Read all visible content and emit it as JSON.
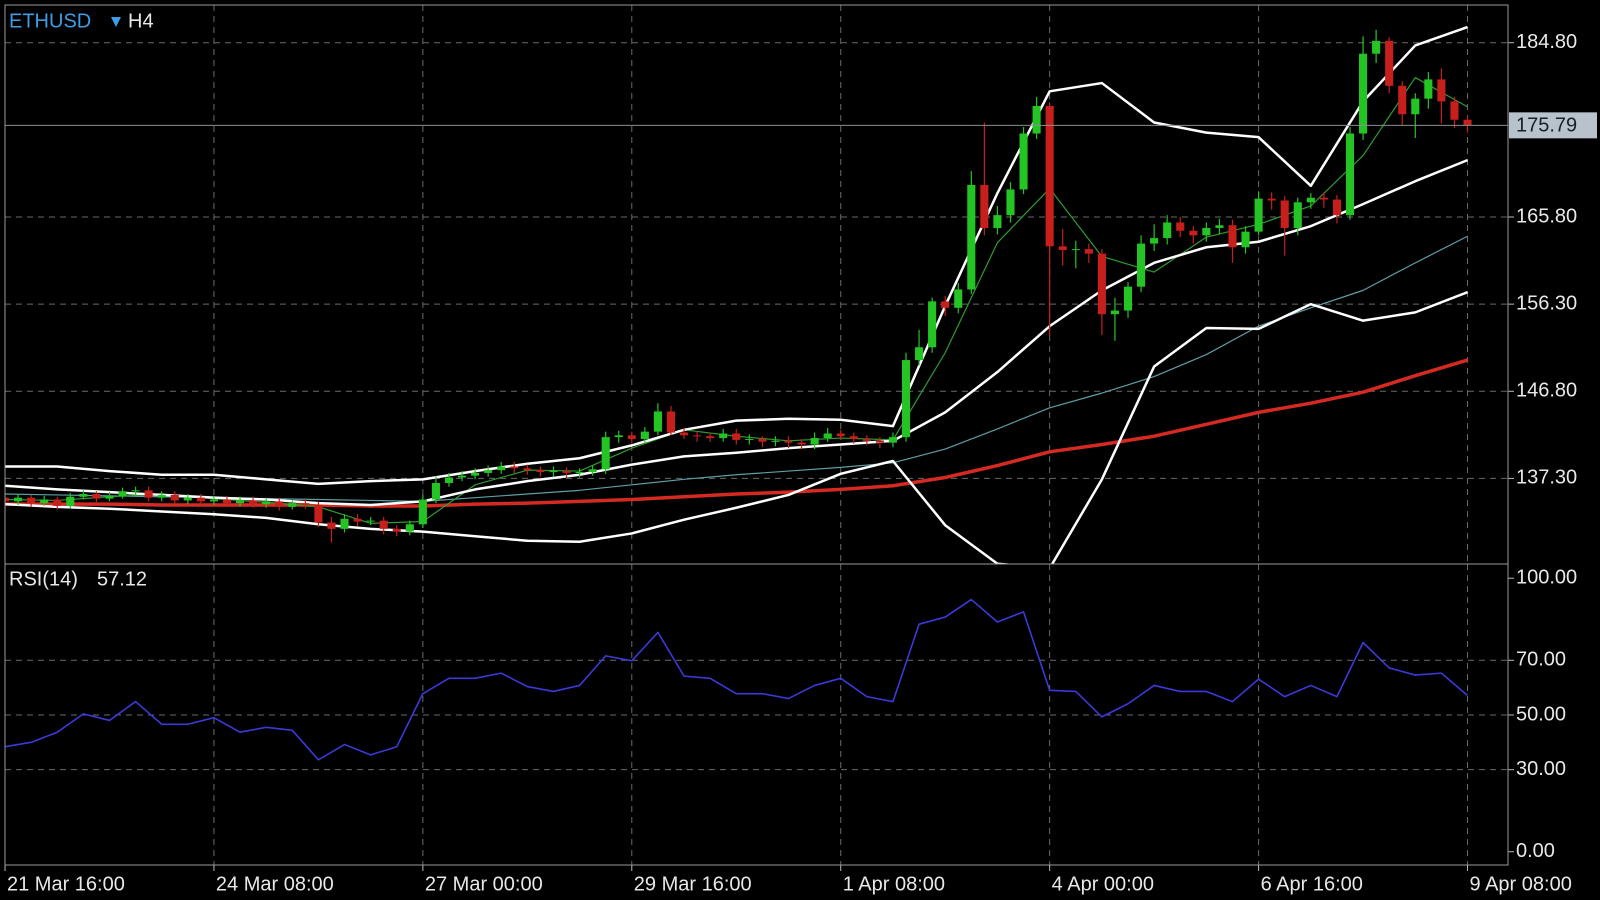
{
  "chart_data": [
    {
      "type": "candlestick",
      "symbol": "ETHUSD",
      "timeframe": "H4",
      "up_color": "#25c425",
      "down_color": "#c61f1c",
      "open": [
        135.2,
        134.8,
        135.2,
        134.6,
        135.0,
        134.3,
        135.3,
        135.6,
        135.1,
        135.4,
        135.9,
        136.0,
        135.2,
        135.5,
        134.9,
        135.2,
        134.8,
        135.0,
        134.6,
        134.9,
        134.5,
        134.8,
        134.2,
        134.6,
        134.4,
        132.5,
        131.8,
        132.9,
        132.6,
        132.7,
        131.8,
        131.5,
        132.3,
        135.0,
        136.8,
        137.4,
        137.6,
        137.9,
        138.2,
        138.6,
        138.4,
        138.2,
        138.0,
        138.1,
        137.9,
        138.0,
        138.3,
        141.8,
        142.0,
        141.6,
        142.4,
        144.6,
        142.3,
        142.0,
        141.9,
        141.7,
        142.2,
        141.5,
        141.6,
        141.3,
        141.4,
        141.2,
        141.0,
        141.7,
        142.2,
        141.9,
        141.6,
        141.4,
        141.2,
        141.8,
        150.2,
        151.6,
        156.6,
        155.9,
        157.9,
        169.3,
        164.6,
        166.0,
        168.8,
        174.9,
        177.9,
        162.6,
        162.2,
        162.3,
        161.8,
        155.2,
        155.6,
        158.2,
        162.9,
        163.5,
        165.2,
        164.3,
        163.8,
        164.6,
        164.9,
        162.5,
        164.2,
        167.8,
        167.6,
        164.6,
        167.4,
        167.9,
        167.7,
        166.0,
        174.9,
        183.6,
        185.0,
        180.1,
        177.0,
        178.7,
        180.8,
        178.4,
        176.4
      ],
      "high": [
        135.6,
        135.6,
        135.5,
        135.4,
        135.3,
        135.7,
        136.0,
        135.9,
        135.8,
        136.3,
        136.4,
        136.4,
        135.9,
        135.9,
        135.6,
        135.6,
        135.4,
        135.4,
        135.3,
        135.3,
        135.2,
        135.2,
        134.9,
        135.0,
        134.8,
        133.1,
        133.4,
        133.4,
        133.1,
        133.1,
        132.2,
        132.7,
        135.5,
        137.5,
        137.9,
        138.1,
        138.4,
        138.7,
        139.1,
        139.1,
        138.8,
        138.6,
        138.6,
        138.5,
        138.4,
        138.7,
        142.4,
        142.5,
        142.4,
        142.9,
        145.5,
        145.2,
        142.8,
        142.4,
        142.3,
        142.7,
        142.7,
        142.1,
        141.9,
        141.9,
        141.9,
        141.6,
        142.3,
        142.8,
        142.6,
        142.3,
        142.0,
        141.8,
        142.3,
        151.0,
        153.5,
        157.0,
        157.2,
        158.6,
        170.8,
        176.1,
        167.0,
        169.6,
        175.6,
        178.9,
        178.3,
        164.5,
        163.2,
        162.9,
        162.3,
        157.0,
        158.7,
        163.8,
        165.0,
        166.0,
        165.8,
        164.8,
        165.2,
        165.6,
        165.5,
        164.8,
        168.6,
        168.5,
        168.1,
        167.9,
        168.4,
        168.5,
        168.2,
        175.6,
        185.5,
        186.2,
        185.4,
        180.6,
        179.3,
        181.6,
        182.0,
        178.9,
        176.9
      ],
      "low": [
        133.8,
        134.4,
        134.2,
        134.3,
        133.9,
        134.0,
        135.0,
        134.7,
        134.8,
        135.1,
        135.4,
        134.8,
        134.8,
        134.5,
        134.5,
        134.4,
        134.4,
        134.2,
        134.2,
        134.1,
        134.1,
        133.8,
        133.9,
        134.0,
        132.0,
        130.3,
        131.4,
        132.1,
        132.2,
        131.2,
        131.0,
        131.1,
        131.9,
        134.6,
        136.4,
        137.0,
        137.2,
        137.5,
        137.8,
        137.9,
        137.7,
        137.5,
        137.5,
        137.4,
        137.4,
        137.6,
        137.8,
        141.2,
        141.1,
        141.2,
        142.0,
        142.0,
        141.6,
        141.3,
        141.3,
        141.3,
        141.0,
        141.0,
        140.7,
        140.8,
        140.6,
        140.5,
        140.5,
        141.3,
        141.5,
        141.1,
        140.9,
        140.6,
        140.7,
        141.3,
        149.6,
        151.0,
        155.0,
        155.3,
        157.4,
        163.8,
        163.9,
        165.2,
        168.3,
        174.3,
        152.8,
        160.5,
        160.2,
        160.8,
        152.9,
        152.3,
        154.8,
        157.6,
        162.1,
        162.8,
        163.6,
        162.9,
        163.1,
        163.9,
        160.8,
        161.8,
        163.8,
        166.6,
        161.6,
        163.8,
        166.7,
        166.8,
        165.1,
        165.5,
        174.2,
        182.6,
        179.3,
        175.8,
        174.4,
        177.6,
        176.0,
        175.5,
        175.0
      ],
      "close": [
        134.8,
        135.2,
        134.6,
        135.0,
        134.3,
        135.3,
        135.6,
        135.1,
        135.4,
        135.9,
        136.0,
        135.2,
        135.5,
        134.9,
        135.2,
        134.8,
        135.0,
        134.6,
        134.9,
        134.5,
        134.8,
        134.2,
        134.6,
        134.4,
        132.5,
        131.8,
        132.9,
        132.6,
        132.7,
        131.8,
        131.5,
        132.3,
        135.0,
        136.8,
        137.4,
        137.6,
        137.9,
        138.2,
        138.6,
        138.4,
        138.2,
        138.0,
        138.1,
        137.9,
        138.0,
        138.3,
        141.8,
        142.0,
        141.6,
        142.4,
        144.6,
        142.3,
        142.0,
        141.9,
        141.7,
        142.2,
        141.5,
        141.6,
        141.3,
        141.4,
        141.2,
        141.0,
        141.7,
        142.2,
        141.9,
        141.6,
        141.4,
        141.2,
        141.8,
        150.2,
        151.6,
        156.6,
        155.9,
        157.9,
        169.3,
        164.6,
        166.0,
        168.8,
        174.9,
        177.9,
        162.6,
        162.2,
        162.3,
        161.8,
        155.2,
        155.6,
        158.2,
        162.9,
        163.5,
        165.2,
        164.3,
        163.8,
        164.6,
        164.9,
        162.5,
        164.2,
        167.8,
        167.6,
        164.6,
        167.4,
        167.9,
        167.7,
        166.0,
        174.9,
        183.6,
        185.0,
        180.1,
        177.0,
        178.7,
        180.8,
        178.4,
        176.4,
        175.79
      ],
      "overlay_x": [
        0,
        4,
        8,
        12,
        16,
        20,
        24,
        28,
        32,
        36,
        40,
        44,
        48,
        52,
        56,
        60,
        64,
        68,
        72,
        76,
        80,
        84,
        88,
        92,
        96,
        100,
        104,
        108,
        112
      ],
      "overlays": [
        {
          "color": "#d42a22",
          "width": 3.5,
          "values": [
            134.5,
            134.5,
            134.5,
            134.4,
            134.4,
            134.4,
            134.4,
            134.3,
            134.3,
            134.5,
            134.6,
            134.8,
            135.0,
            135.3,
            135.6,
            135.8,
            136.1,
            136.5,
            137.4,
            138.7,
            140.2,
            141.0,
            141.9,
            143.2,
            144.5,
            145.5,
            146.7,
            148.5,
            150.2
          ]
        },
        {
          "color": "#5e9ea6",
          "width": 1.2,
          "values": [
            135.6,
            135.5,
            135.4,
            135.3,
            135.2,
            135.1,
            135.0,
            134.9,
            134.8,
            135.2,
            135.6,
            136.0,
            136.6,
            137.2,
            137.7,
            138.1,
            138.5,
            139.0,
            140.5,
            142.7,
            145.0,
            146.6,
            148.4,
            150.8,
            153.9,
            155.9,
            157.8,
            160.8,
            163.7
          ]
        },
        {
          "color": "#2e9c2e",
          "width": 1.2,
          "values": [
            135.0,
            134.9,
            135.3,
            135.6,
            135.1,
            134.7,
            134.2,
            132.4,
            132.6,
            136.6,
            138.2,
            138.1,
            140.6,
            142.6,
            141.9,
            141.4,
            141.7,
            141.5,
            151.0,
            163.0,
            168.9,
            161.5,
            159.8,
            163.6,
            165.0,
            167.0,
            172.5,
            181.0,
            177.8
          ]
        },
        {
          "color": "#ffffff",
          "width": 2.5,
          "values": [
            138.6,
            138.6,
            138.1,
            137.7,
            137.7,
            137.2,
            136.7,
            137.0,
            137.2,
            138.1,
            138.9,
            139.5,
            140.9,
            142.6,
            143.6,
            143.8,
            143.7,
            143.0,
            156.1,
            168.4,
            179.5,
            180.4,
            176.1,
            175.0,
            174.5,
            169.2,
            178.4,
            184.5,
            186.5
          ]
        },
        {
          "color": "#ffffff",
          "width": 2.5,
          "values": [
            136.5,
            136.1,
            135.8,
            135.5,
            135.2,
            135.0,
            134.6,
            134.4,
            134.8,
            136.1,
            137.0,
            137.7,
            138.8,
            139.7,
            140.1,
            140.6,
            141.0,
            141.4,
            144.5,
            148.9,
            153.9,
            157.8,
            160.8,
            162.5,
            163.1,
            164.8,
            167.2,
            169.7,
            172.0
          ]
        },
        {
          "color": "#ffffff",
          "width": 2.5,
          "values": [
            134.5,
            134.2,
            134.0,
            133.7,
            133.4,
            133.0,
            132.3,
            131.8,
            131.5,
            131.0,
            130.5,
            130.4,
            131.3,
            132.8,
            134.1,
            135.5,
            137.8,
            139.2,
            132.2,
            128.0,
            127.5,
            137.2,
            149.5,
            153.7,
            153.6,
            156.3,
            154.5,
            155.4,
            157.6
          ]
        }
      ],
      "xlim": [
        0,
        115.1
      ],
      "xticks": [
        {
          "value": 0,
          "label": "21 Mar 16:00"
        },
        {
          "value": 16,
          "label": "24 Mar 08:00"
        },
        {
          "value": 32,
          "label": "27 Mar 00:00"
        },
        {
          "value": 48,
          "label": "29 Mar 16:00"
        },
        {
          "value": 64,
          "label": "1 Apr 08:00"
        },
        {
          "value": 80,
          "label": "4 Apr 00:00"
        },
        {
          "value": 96,
          "label": "6 Apr 16:00"
        },
        {
          "value": 112,
          "label": "9 Apr 08:00"
        }
      ],
      "ylim": [
        127.97,
        188.91
      ],
      "yticks": [
        {
          "value": 184.8,
          "label": "184.80"
        },
        {
          "value": 165.8,
          "label": "165.80"
        },
        {
          "value": 156.3,
          "label": "156.30"
        },
        {
          "value": 146.8,
          "label": "146.80"
        },
        {
          "value": 137.3,
          "label": "137.30"
        }
      ],
      "grid": true
    },
    {
      "type": "line",
      "name": "RSI(14)",
      "color": "#3a3ad8",
      "x": [
        0,
        2,
        4,
        6,
        8,
        10,
        12,
        14,
        16,
        18,
        20,
        22,
        24,
        26,
        28,
        30,
        32,
        34,
        36,
        38,
        40,
        42,
        44,
        46,
        48,
        50,
        52,
        54,
        56,
        58,
        60,
        62,
        64,
        66,
        68,
        70,
        72,
        74,
        76,
        78,
        80,
        82,
        84,
        86,
        88,
        90,
        92,
        94,
        96,
        98,
        100,
        102,
        104,
        106,
        108,
        110,
        112
      ],
      "values": [
        38.4,
        40.0,
        43.7,
        50.4,
        48.0,
        54.9,
        46.6,
        46.6,
        49.0,
        43.7,
        45.5,
        44.4,
        33.6,
        39.2,
        35.4,
        38.4,
        57.8,
        63.4,
        63.4,
        65.3,
        60.4,
        58.6,
        60.8,
        71.6,
        69.8,
        80.2,
        64.2,
        63.4,
        57.8,
        57.8,
        56.0,
        60.8,
        63.4,
        56.7,
        54.9,
        83.2,
        85.8,
        92.2,
        84.0,
        87.7,
        59.0,
        58.6,
        49.3,
        54.1,
        60.8,
        58.6,
        58.6,
        54.9,
        63.1,
        56.7,
        60.8,
        56.7,
        76.5,
        67.2,
        64.6,
        65.3,
        57.12
      ],
      "ylim": [
        -4.85,
        105.2
      ],
      "yticks": [
        {
          "value": 100,
          "label": "100.00"
        },
        {
          "value": 70,
          "label": "70.00"
        },
        {
          "value": 50,
          "label": "50.00"
        },
        {
          "value": 30,
          "label": "30.00"
        },
        {
          "value": 0,
          "label": "0.00"
        }
      ],
      "grid": true
    }
  ]
}
